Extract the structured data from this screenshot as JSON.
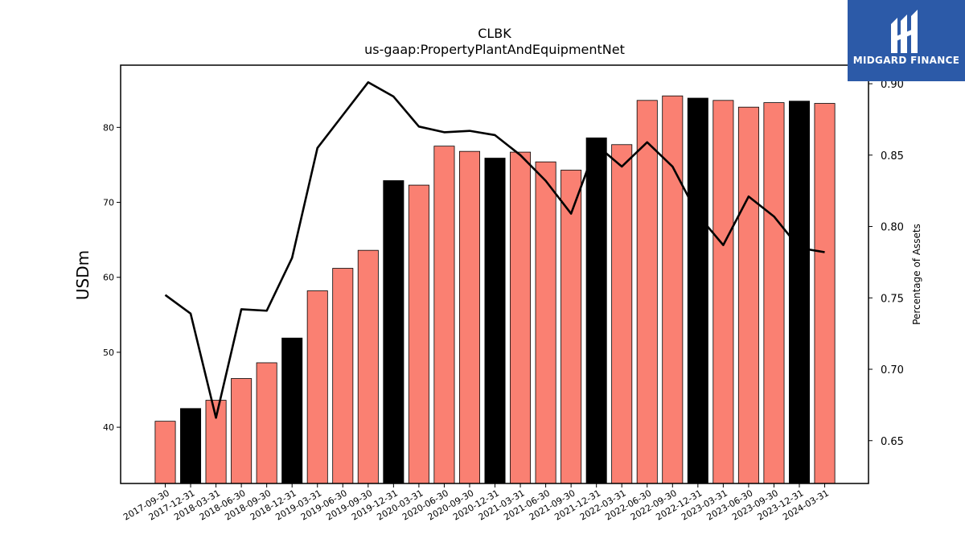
{
  "chart_data": {
    "type": "bar",
    "title": "CLBK",
    "subtitle": "us-gaap:PropertyPlantAndEquipmentNet",
    "ylabel": "USDm",
    "y2label": "Percentage of Assets",
    "ylim": [
      32.5,
      88.3
    ],
    "y2lim": [
      0.62,
      0.913
    ],
    "yticks": [
      40,
      50,
      60,
      70,
      80
    ],
    "y2ticks": [
      "0.65",
      "0.70",
      "0.75",
      "0.80",
      "0.85",
      "0.90"
    ],
    "categories": [
      "2017-09-30",
      "2017-12-31",
      "2018-03-31",
      "2018-06-30",
      "2018-09-30",
      "2018-12-31",
      "2019-03-31",
      "2019-06-30",
      "2019-09-30",
      "2019-12-31",
      "2020-03-31",
      "2020-06-30",
      "2020-09-30",
      "2020-12-31",
      "2021-03-31",
      "2021-06-30",
      "2021-09-30",
      "2021-12-31",
      "2022-03-31",
      "2022-06-30",
      "2022-09-30",
      "2022-12-31",
      "2023-03-31",
      "2023-06-30",
      "2023-09-30",
      "2023-12-31",
      "2024-03-31"
    ],
    "values": [
      40.8,
      42.5,
      43.6,
      46.5,
      48.6,
      51.9,
      58.2,
      61.2,
      63.6,
      72.9,
      72.3,
      77.5,
      76.8,
      75.9,
      76.7,
      75.4,
      74.3,
      78.6,
      77.7,
      83.6,
      84.2,
      83.9,
      83.6,
      82.7,
      83.3,
      83.5,
      83.2
    ],
    "bar_colors": [
      "#fa8072",
      "#000000",
      "#fa8072",
      "#fa8072",
      "#fa8072",
      "#000000",
      "#fa8072",
      "#fa8072",
      "#fa8072",
      "#000000",
      "#fa8072",
      "#fa8072",
      "#fa8072",
      "#000000",
      "#fa8072",
      "#fa8072",
      "#fa8072",
      "#000000",
      "#fa8072",
      "#fa8072",
      "#fa8072",
      "#000000",
      "#fa8072",
      "#fa8072",
      "#fa8072",
      "#000000",
      "#fa8072"
    ],
    "pct_of_assets": [
      0.752,
      0.739,
      0.666,
      0.742,
      0.741,
      0.778,
      0.855,
      0.878,
      0.901,
      0.891,
      0.87,
      0.866,
      0.867,
      0.864,
      0.85,
      0.832,
      0.809,
      0.857,
      0.842,
      0.859,
      0.842,
      0.808,
      0.787,
      0.821,
      0.807,
      0.785,
      0.782
    ],
    "line_color": "#000000",
    "grid": false
  },
  "logo": {
    "text": "MIDGARD FINANCE",
    "background": "#2c5aa8"
  }
}
